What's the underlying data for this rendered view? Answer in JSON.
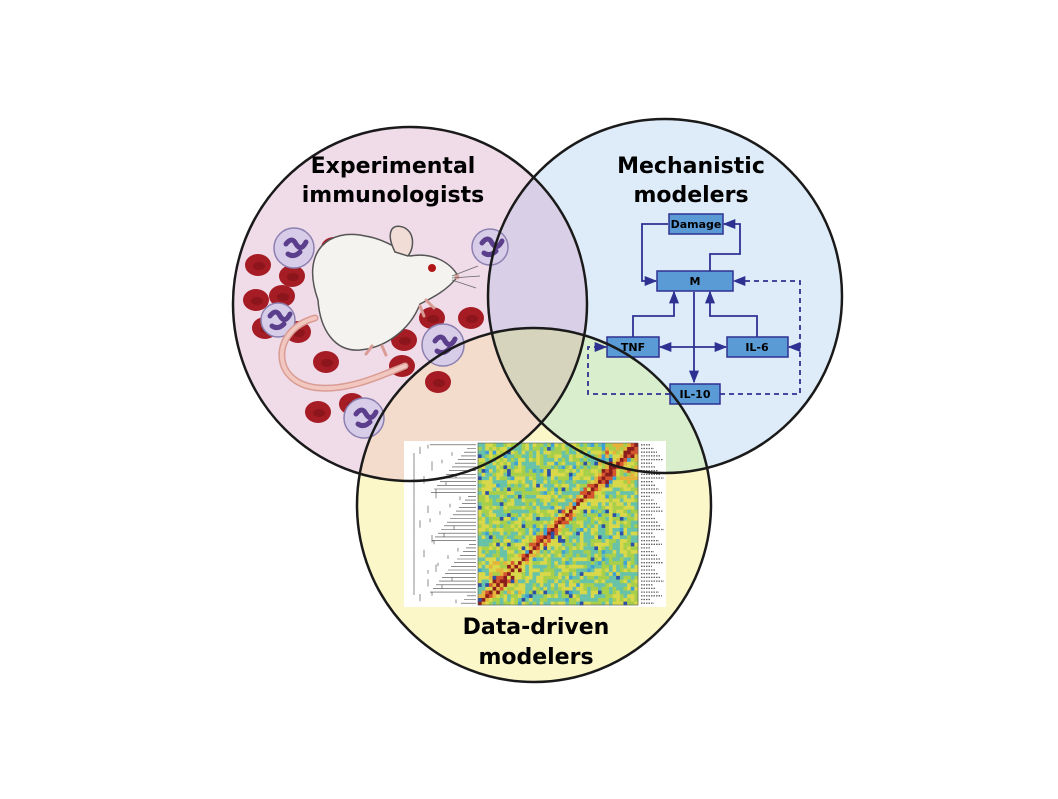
{
  "circles": {
    "experimental": {
      "label_lines": [
        "Experimental",
        "immunologists"
      ],
      "color": "#f0dbe8"
    },
    "mechanistic": {
      "label_lines": [
        "Mechanistic",
        "modelers"
      ],
      "color": "#deebf8"
    },
    "datadriven": {
      "label_lines": [
        "Data-driven",
        "modelers"
      ],
      "color": "#fbf7c9"
    }
  },
  "network": {
    "nodes": {
      "damage": "Damage",
      "m": "M",
      "tnf": "TNF",
      "il6": "IL-6",
      "il10": "IL-10"
    },
    "box_color": "#5b9bd5",
    "line_color": "#2e3192"
  },
  "heatmap": {
    "rows": 44,
    "cols": 44
  },
  "illustration": {
    "subject": "mouse-icon"
  }
}
